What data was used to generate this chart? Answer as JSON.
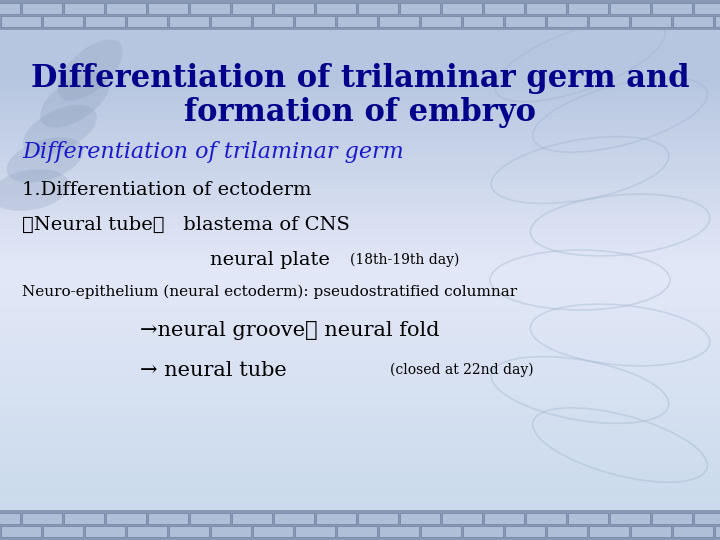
{
  "title_line1": "Differentiation of trilaminar germ and",
  "title_line2": "formation of embryo",
  "subtitle": "Differentiation of trilaminar germ",
  "line1": "1.Differentiation of ectoderm",
  "line2_prefix": "①Neural tube：   blastema of CNS",
  "line3_main": "neural plate ",
  "line3_small": "(18th-19th day)",
  "line4": "Neuro-epithelium (neural ectoderm): pseudostratified columnar",
  "line5": "→neural groove， neural fold",
  "line6_main": "→ neural tube  ",
  "line6_small": "(closed at 22nd day)",
  "bg_top": "#b8c8e0",
  "bg_mid": "#dde6f4",
  "bg_bottom": "#c8d8ec",
  "title_color": "#00008B",
  "subtitle_color": "#1a1acd",
  "text_color": "#000000",
  "brick_bg": "#9aaac4",
  "brick_face": "#b8c8dc",
  "brick_edge": "#7888aa"
}
